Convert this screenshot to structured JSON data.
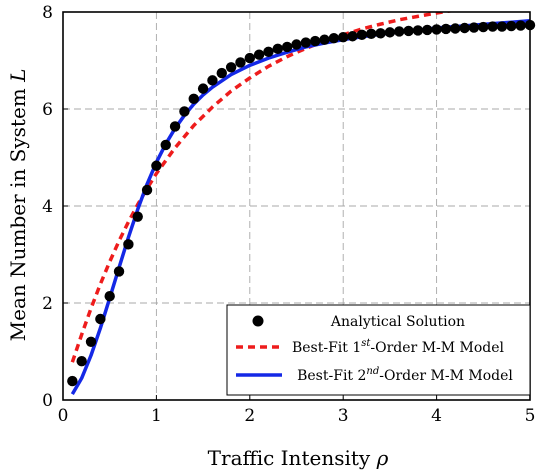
{
  "chart_data": {
    "type": "line",
    "xlabel_main": "Traffic Intensity ",
    "xlabel_symbol": "ρ",
    "ylabel_main": "Mean Number in System ",
    "ylabel_symbol": "L",
    "xlim": [
      0,
      5
    ],
    "ylim": [
      0,
      8
    ],
    "xticks": [
      "0",
      "1",
      "2",
      "3",
      "4",
      "5"
    ],
    "yticks": [
      "0",
      "2",
      "4",
      "6",
      "8"
    ],
    "grid": true,
    "legend_position": "bottom-right",
    "series": [
      {
        "name": "Analytical Solution",
        "kind": "scatter",
        "color": "#000000",
        "x": [
          0.1,
          0.2,
          0.3,
          0.4,
          0.5,
          0.6,
          0.7,
          0.8,
          0.9,
          1.0,
          1.1,
          1.2,
          1.3,
          1.4,
          1.5,
          1.6,
          1.7,
          1.8,
          1.9,
          2.0,
          2.1,
          2.2,
          2.3,
          2.4,
          2.5,
          2.6,
          2.7,
          2.8,
          2.9,
          3.0,
          3.1,
          3.2,
          3.3,
          3.4,
          3.5,
          3.6,
          3.7,
          3.8,
          3.9,
          4.0,
          4.1,
          4.2,
          4.3,
          4.4,
          4.5,
          4.6,
          4.7,
          4.8,
          4.9,
          5.0
        ],
        "y": [
          0.39,
          0.8,
          1.2,
          1.67,
          2.14,
          2.65,
          3.21,
          3.78,
          4.33,
          4.83,
          5.26,
          5.64,
          5.95,
          6.21,
          6.42,
          6.59,
          6.74,
          6.86,
          6.96,
          7.05,
          7.12,
          7.18,
          7.24,
          7.28,
          7.33,
          7.37,
          7.4,
          7.43,
          7.46,
          7.48,
          7.5,
          7.53,
          7.55,
          7.56,
          7.58,
          7.6,
          7.61,
          7.62,
          7.63,
          7.64,
          7.65,
          7.66,
          7.67,
          7.68,
          7.69,
          7.7,
          7.7,
          7.71,
          7.72,
          7.73
        ]
      },
      {
        "name_main": "Best-Fit 1",
        "name_sup": "st",
        "name_rest": "-Order M-M Model",
        "kind": "line",
        "dash": true,
        "color": "#ee1c1c",
        "x": [
          0.1,
          0.2,
          0.3,
          0.4,
          0.5,
          0.6,
          0.7,
          0.8,
          0.9,
          1.0,
          1.2,
          1.4,
          1.6,
          1.8,
          2.0,
          2.2,
          2.4,
          2.6,
          2.8,
          3.0,
          3.2,
          3.4,
          3.6,
          3.8,
          4.0,
          4.2,
          4.4
        ],
        "y": [
          0.78,
          1.35,
          1.89,
          2.39,
          2.85,
          3.28,
          3.67,
          4.03,
          4.36,
          4.67,
          5.2,
          5.66,
          6.04,
          6.37,
          6.64,
          6.88,
          7.08,
          7.25,
          7.4,
          7.53,
          7.65,
          7.75,
          7.84,
          7.91,
          7.98,
          8.04,
          8.09
        ]
      },
      {
        "name_main": "Best-Fit 2",
        "name_sup": "nd",
        "name_rest": "-Order M-M Model",
        "kind": "line",
        "dash": false,
        "color": "#1428e6",
        "x": [
          0.1,
          0.2,
          0.3,
          0.4,
          0.5,
          0.6,
          0.7,
          0.8,
          0.9,
          1.0,
          1.1,
          1.2,
          1.3,
          1.4,
          1.5,
          1.6,
          1.8,
          2.0,
          2.2,
          2.4,
          2.6,
          2.8,
          3.0,
          3.2,
          3.4,
          3.6,
          3.8,
          4.0,
          4.2,
          4.4,
          4.6,
          4.8,
          5.0
        ],
        "y": [
          0.12,
          0.45,
          0.92,
          1.48,
          2.1,
          2.73,
          3.35,
          3.93,
          4.45,
          4.9,
          5.28,
          5.6,
          5.87,
          6.1,
          6.29,
          6.45,
          6.71,
          6.9,
          7.05,
          7.17,
          7.28,
          7.36,
          7.43,
          7.49,
          7.54,
          7.59,
          7.63,
          7.67,
          7.7,
          7.73,
          7.76,
          7.79,
          7.82
        ]
      }
    ]
  }
}
